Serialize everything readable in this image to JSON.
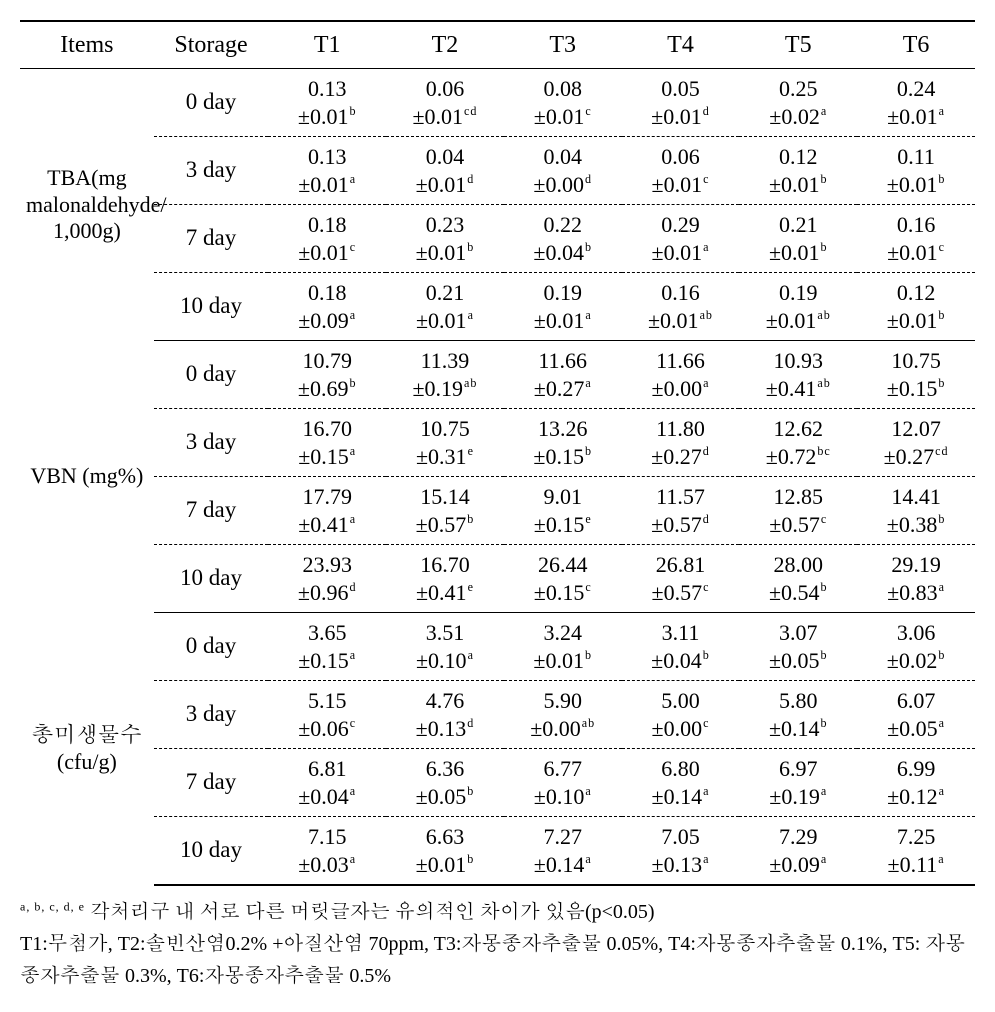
{
  "table": {
    "columns": [
      "Items",
      "Storage",
      "T1",
      "T2",
      "T3",
      "T4",
      "T5",
      "T6"
    ],
    "groups": [
      {
        "item_label": "TBA(mg malonaldehyde/ 1,000g)",
        "rows": [
          {
            "storage": "0 day",
            "cells": [
              {
                "mean": "0.13",
                "sd": "0.01",
                "sup": "b"
              },
              {
                "mean": "0.06",
                "sd": "0.01",
                "sup": "cd"
              },
              {
                "mean": "0.08",
                "sd": "0.01",
                "sup": "c"
              },
              {
                "mean": "0.05",
                "sd": "0.01",
                "sup": "d"
              },
              {
                "mean": "0.25",
                "sd": "0.02",
                "sup": "a"
              },
              {
                "mean": "0.24",
                "sd": "0.01",
                "sup": "a"
              }
            ]
          },
          {
            "storage": "3 day",
            "cells": [
              {
                "mean": "0.13",
                "sd": "0.01",
                "sup": "a"
              },
              {
                "mean": "0.04",
                "sd": "0.01",
                "sup": "d"
              },
              {
                "mean": "0.04",
                "sd": "0.00",
                "sup": "d"
              },
              {
                "mean": "0.06",
                "sd": "0.01",
                "sup": "c"
              },
              {
                "mean": "0.12",
                "sd": "0.01",
                "sup": "b"
              },
              {
                "mean": "0.11",
                "sd": "0.01",
                "sup": "b"
              }
            ]
          },
          {
            "storage": "7 day",
            "cells": [
              {
                "mean": "0.18",
                "sd": "0.01",
                "sup": "c"
              },
              {
                "mean": "0.23",
                "sd": "0.01",
                "sup": "b"
              },
              {
                "mean": "0.22",
                "sd": "0.04",
                "sup": "b"
              },
              {
                "mean": "0.29",
                "sd": "0.01",
                "sup": "a"
              },
              {
                "mean": "0.21",
                "sd": "0.01",
                "sup": "b"
              },
              {
                "mean": "0.16",
                "sd": "0.01",
                "sup": "c"
              }
            ]
          },
          {
            "storage": "10 day",
            "cells": [
              {
                "mean": "0.18",
                "sd": "0.09",
                "sup": "a"
              },
              {
                "mean": "0.21",
                "sd": "0.01",
                "sup": "a"
              },
              {
                "mean": "0.19",
                "sd": "0.01",
                "sup": "a"
              },
              {
                "mean": "0.16",
                "sd": "0.01",
                "sup": "ab"
              },
              {
                "mean": "0.19",
                "sd": "0.01",
                "sup": "ab"
              },
              {
                "mean": "0.12",
                "sd": "0.01",
                "sup": "b"
              }
            ]
          }
        ]
      },
      {
        "item_label": "VBN (mg%)",
        "rows": [
          {
            "storage": "0 day",
            "cells": [
              {
                "mean": "10.79",
                "sd": "0.69",
                "sup": "b"
              },
              {
                "mean": "11.39",
                "sd": "0.19",
                "sup": "ab"
              },
              {
                "mean": "11.66",
                "sd": "0.27",
                "sup": "a"
              },
              {
                "mean": "11.66",
                "sd": "0.00",
                "sup": "a"
              },
              {
                "mean": "10.93",
                "sd": "0.41",
                "sup": "ab"
              },
              {
                "mean": "10.75",
                "sd": "0.15",
                "sup": "b"
              }
            ]
          },
          {
            "storage": "3 day",
            "cells": [
              {
                "mean": "16.70",
                "sd": "0.15",
                "sup": "a"
              },
              {
                "mean": "10.75",
                "sd": "0.31",
                "sup": "e"
              },
              {
                "mean": "13.26",
                "sd": "0.15",
                "sup": "b"
              },
              {
                "mean": "11.80",
                "sd": "0.27",
                "sup": "d"
              },
              {
                "mean": "12.62",
                "sd": "0.72",
                "sup": "bc"
              },
              {
                "mean": "12.07",
                "sd": "0.27",
                "sup": "cd"
              }
            ]
          },
          {
            "storage": "7 day",
            "cells": [
              {
                "mean": "17.79",
                "sd": "0.41",
                "sup": "a"
              },
              {
                "mean": "15.14",
                "sd": "0.57",
                "sup": "b"
              },
              {
                "mean": "9.01",
                "sd": "0.15",
                "sup": "e"
              },
              {
                "mean": "11.57",
                "sd": "0.57",
                "sup": "d"
              },
              {
                "mean": "12.85",
                "sd": "0.57",
                "sup": "c"
              },
              {
                "mean": "14.41",
                "sd": "0.38",
                "sup": "b"
              }
            ]
          },
          {
            "storage": "10 day",
            "cells": [
              {
                "mean": "23.93",
                "sd": "0.96",
                "sup": "d"
              },
              {
                "mean": "16.70",
                "sd": "0.41",
                "sup": "e"
              },
              {
                "mean": "26.44",
                "sd": "0.15",
                "sup": "c"
              },
              {
                "mean": "26.81",
                "sd": "0.57",
                "sup": "c"
              },
              {
                "mean": "28.00",
                "sd": "0.54",
                "sup": "b"
              },
              {
                "mean": "29.19",
                "sd": "0.83",
                "sup": "a"
              }
            ]
          }
        ]
      },
      {
        "item_label": "총미생물수 (cfu/g)",
        "rows": [
          {
            "storage": "0 day",
            "cells": [
              {
                "mean": "3.65",
                "sd": "0.15",
                "sup": "a"
              },
              {
                "mean": "3.51",
                "sd": "0.10",
                "sup": "a"
              },
              {
                "mean": "3.24",
                "sd": "0.01",
                "sup": "b"
              },
              {
                "mean": "3.11",
                "sd": "0.04",
                "sup": "b"
              },
              {
                "mean": "3.07",
                "sd": "0.05",
                "sup": "b"
              },
              {
                "mean": "3.06",
                "sd": "0.02",
                "sup": "b"
              }
            ]
          },
          {
            "storage": "3 day",
            "cells": [
              {
                "mean": "5.15",
                "sd": "0.06",
                "sup": "c"
              },
              {
                "mean": "4.76",
                "sd": "0.13",
                "sup": "d"
              },
              {
                "mean": "5.90",
                "sd": "0.00",
                "sup": "ab"
              },
              {
                "mean": "5.00",
                "sd": "0.00",
                "sup": "c"
              },
              {
                "mean": "5.80",
                "sd": "0.14",
                "sup": "b"
              },
              {
                "mean": "6.07",
                "sd": "0.05",
                "sup": "a"
              }
            ]
          },
          {
            "storage": "7 day",
            "cells": [
              {
                "mean": "6.81",
                "sd": "0.04",
                "sup": "a"
              },
              {
                "mean": "6.36",
                "sd": "0.05",
                "sup": "b"
              },
              {
                "mean": "6.77",
                "sd": "0.10",
                "sup": "a"
              },
              {
                "mean": "6.80",
                "sd": "0.14",
                "sup": "a"
              },
              {
                "mean": "6.97",
                "sd": "0.19",
                "sup": "a"
              },
              {
                "mean": "6.99",
                "sd": "0.12",
                "sup": "a"
              }
            ]
          },
          {
            "storage": "10 day",
            "cells": [
              {
                "mean": "7.15",
                "sd": "0.03",
                "sup": "a"
              },
              {
                "mean": "6.63",
                "sd": "0.01",
                "sup": "b"
              },
              {
                "mean": "7.27",
                "sd": "0.14",
                "sup": "a"
              },
              {
                "mean": "7.05",
                "sd": "0.13",
                "sup": "a"
              },
              {
                "mean": "7.29",
                "sd": "0.09",
                "sup": "a"
              },
              {
                "mean": "7.25",
                "sd": "0.11",
                "sup": "a"
              }
            ]
          }
        ]
      }
    ]
  },
  "footnotes": {
    "sig_sup": "a, b, c, d, e",
    "sig_text": " 각처리구 내 서로 다른 머릿글자는 유의적인 차이가 있음(p<0.05)",
    "treatments": "T1:무첨가,  T2:솔빈산염0.2% +아질산염 70ppm, T3:자몽종자추출물 0.05%, T4:자몽종자추출물 0.1%, T5: 자몽종자추출물 0.3%, T6:자몽종자추출물 0.5%"
  },
  "style": {
    "type": "table",
    "background_color": "#ffffff",
    "text_color": "#000000",
    "border_color": "#000000",
    "top_rule_width": 2,
    "bottom_rule_width": 2,
    "group_rule_width": 1,
    "row_rule_style": "dashed",
    "header_fontsize": 24,
    "cell_fontsize": 22,
    "footnote_fontsize": 20
  }
}
